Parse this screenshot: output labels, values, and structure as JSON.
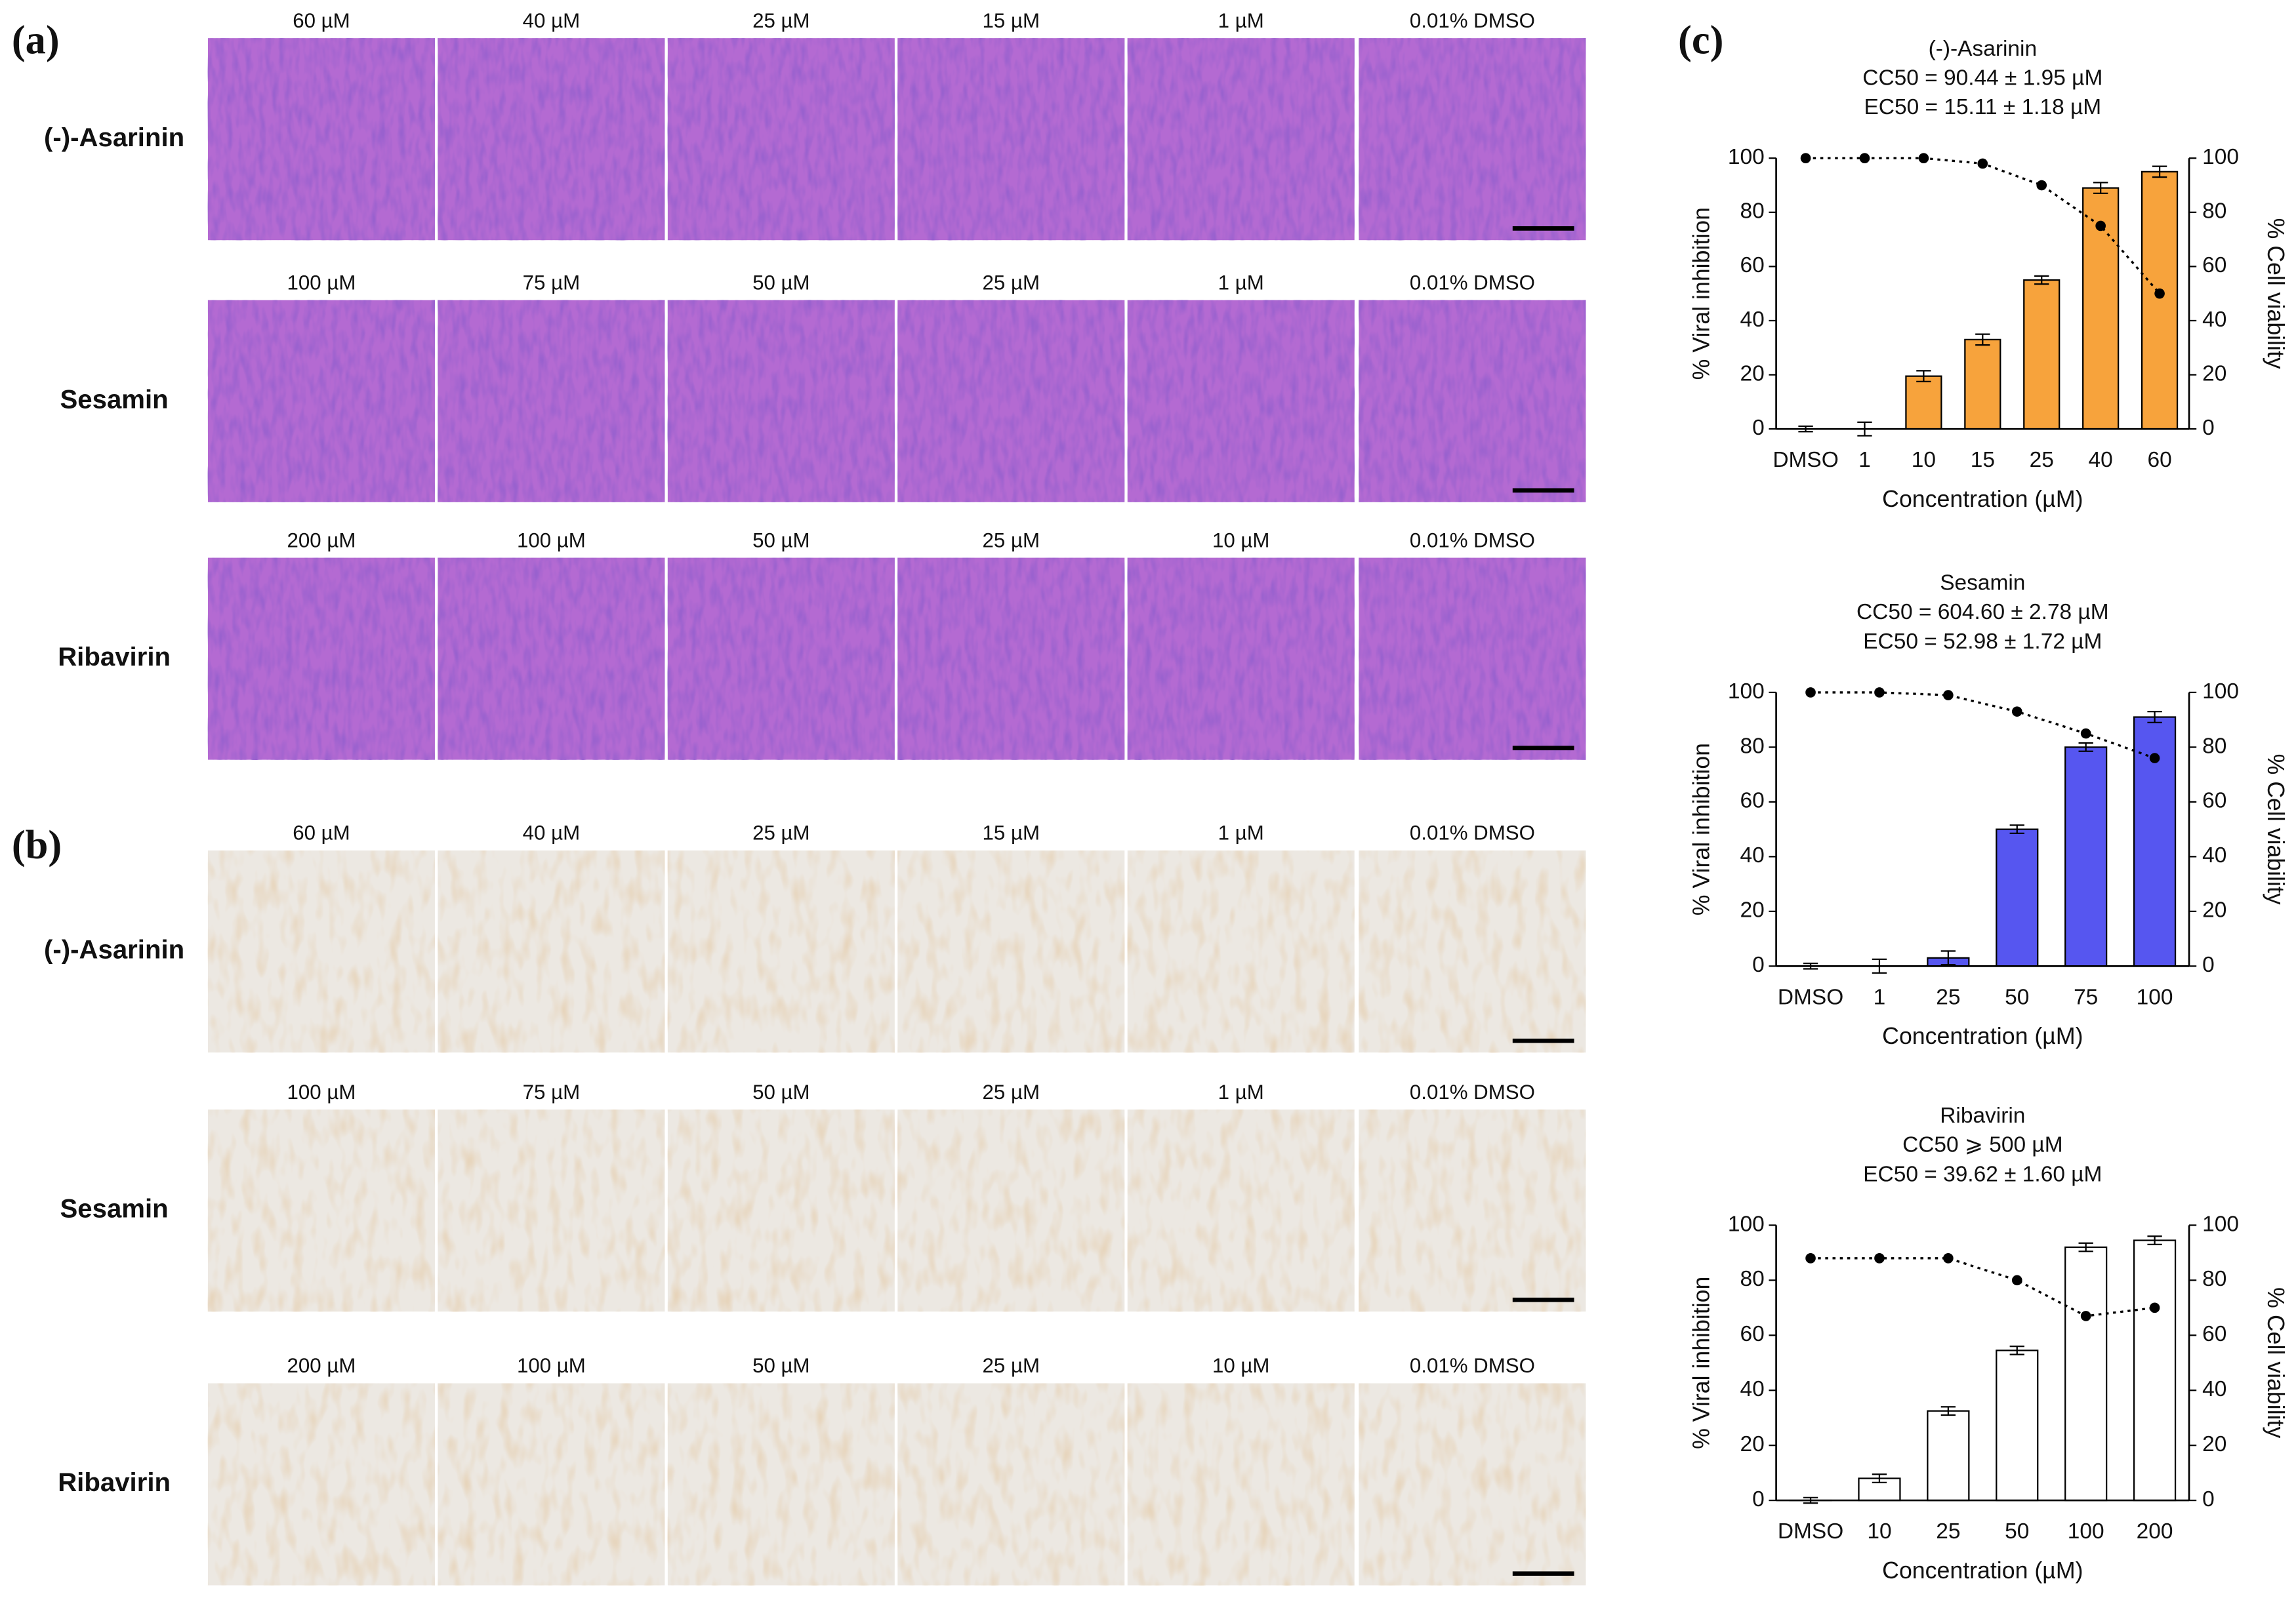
{
  "panel_labels": [
    "(a)",
    "(b)",
    "(c)"
  ],
  "image_panels": [
    {
      "rows": [
        {
          "name": "(-)-Asarinin",
          "conditions": [
            "60 µM",
            "40 µM",
            "25 µM",
            "15 µM",
            "1 µM",
            "0.01% DMSO"
          ]
        },
        {
          "name": "Sesamin",
          "conditions": [
            "100 µM",
            "75 µM",
            "50 µM",
            "25 µM",
            "1 µM",
            "0.01% DMSO"
          ]
        },
        {
          "name": "Ribavirin",
          "conditions": [
            "200 µM",
            "100 µM",
            "50 µM",
            "25 µM",
            "10 µM",
            "0.01% DMSO"
          ]
        }
      ]
    },
    {
      "rows": [
        {
          "name": "(-)-Asarinin",
          "conditions": [
            "60 µM",
            "40 µM",
            "25 µM",
            "15 µM",
            "1 µM",
            "0.01% DMSO"
          ]
        },
        {
          "name": "Sesamin",
          "conditions": [
            "100 µM",
            "75 µM",
            "50 µM",
            "25 µM",
            "1 µM",
            "0.01% DMSO"
          ]
        },
        {
          "name": "Ribavirin",
          "conditions": [
            "200 µM",
            "100 µM",
            "50 µM",
            "25 µM",
            "10 µM",
            "0.01% DMSO"
          ]
        }
      ]
    }
  ],
  "chart_data": [
    {
      "type": "bar",
      "title": "(-)-Asarinin",
      "subtitle": [
        "CC50 = 90.44 ± 1.95 µM",
        "EC50 = 15.11 ± 1.18 µM"
      ],
      "xlabel": "Concentration (µM)",
      "ylabel": "% Viral inhibition",
      "y2label": "% Cell viability",
      "categories": [
        "DMSO",
        "1",
        "10",
        "15",
        "25",
        "40",
        "60"
      ],
      "series": [
        {
          "type": "bar",
          "color": "#f7a33c",
          "values": [
            0,
            0,
            19.5,
            33,
            55,
            89,
            95
          ],
          "errors": [
            1,
            2.5,
            2,
            2,
            1.5,
            2,
            2
          ]
        },
        {
          "type": "line",
          "axis": "y2",
          "color": "#000000",
          "values": [
            100,
            100,
            100,
            98,
            90,
            75,
            50
          ]
        }
      ],
      "ylim": [
        0,
        100
      ],
      "yticks": [
        0,
        20,
        40,
        60,
        80,
        100
      ],
      "y2lim": [
        0,
        100
      ],
      "y2ticks": [
        0,
        20,
        40,
        60,
        80,
        100
      ]
    },
    {
      "type": "bar",
      "title": "Sesamin",
      "subtitle": [
        "CC50 = 604.60 ± 2.78 µM",
        "EC50 = 52.98 ± 1.72 µM"
      ],
      "xlabel": "Concentration (µM)",
      "ylabel": "% Viral inhibition",
      "y2label": "% Cell viability",
      "categories": [
        "DMSO",
        "1",
        "25",
        "50",
        "75",
        "100"
      ],
      "series": [
        {
          "type": "bar",
          "color": "#5656f0",
          "values": [
            0,
            0,
            3,
            50,
            80,
            91
          ],
          "errors": [
            1,
            2.5,
            2.5,
            1.5,
            1.5,
            2
          ]
        },
        {
          "type": "line",
          "axis": "y2",
          "color": "#000000",
          "values": [
            100,
            100,
            99,
            93,
            85,
            76
          ]
        }
      ],
      "ylim": [
        0,
        100
      ],
      "yticks": [
        0,
        20,
        40,
        60,
        80,
        100
      ],
      "y2lim": [
        0,
        100
      ],
      "y2ticks": [
        0,
        20,
        40,
        60,
        80,
        100
      ]
    },
    {
      "type": "bar",
      "title": "Ribavirin",
      "subtitle": [
        "CC50 ⩾ 500 µM",
        "EC50 = 39.62 ± 1.60 µM"
      ],
      "xlabel": "Concentration (µM)",
      "ylabel": "% Viral inhibition",
      "y2label": "% Cell viability",
      "categories": [
        "DMSO",
        "10",
        "25",
        "50",
        "100",
        "200"
      ],
      "series": [
        {
          "type": "bar",
          "color": "#ffffff",
          "values": [
            0,
            8,
            32.5,
            54.5,
            92,
            94.5
          ],
          "errors": [
            1,
            1.5,
            1.5,
            1.5,
            1.5,
            1.5
          ]
        },
        {
          "type": "line",
          "axis": "y2",
          "color": "#000000",
          "values": [
            88,
            88,
            88,
            80,
            67,
            70
          ]
        }
      ],
      "ylim": [
        0,
        100
      ],
      "yticks": [
        0,
        20,
        40,
        60,
        80,
        100
      ],
      "y2lim": [
        0,
        100
      ],
      "y2ticks": [
        0,
        20,
        40,
        60,
        80,
        100
      ]
    }
  ]
}
